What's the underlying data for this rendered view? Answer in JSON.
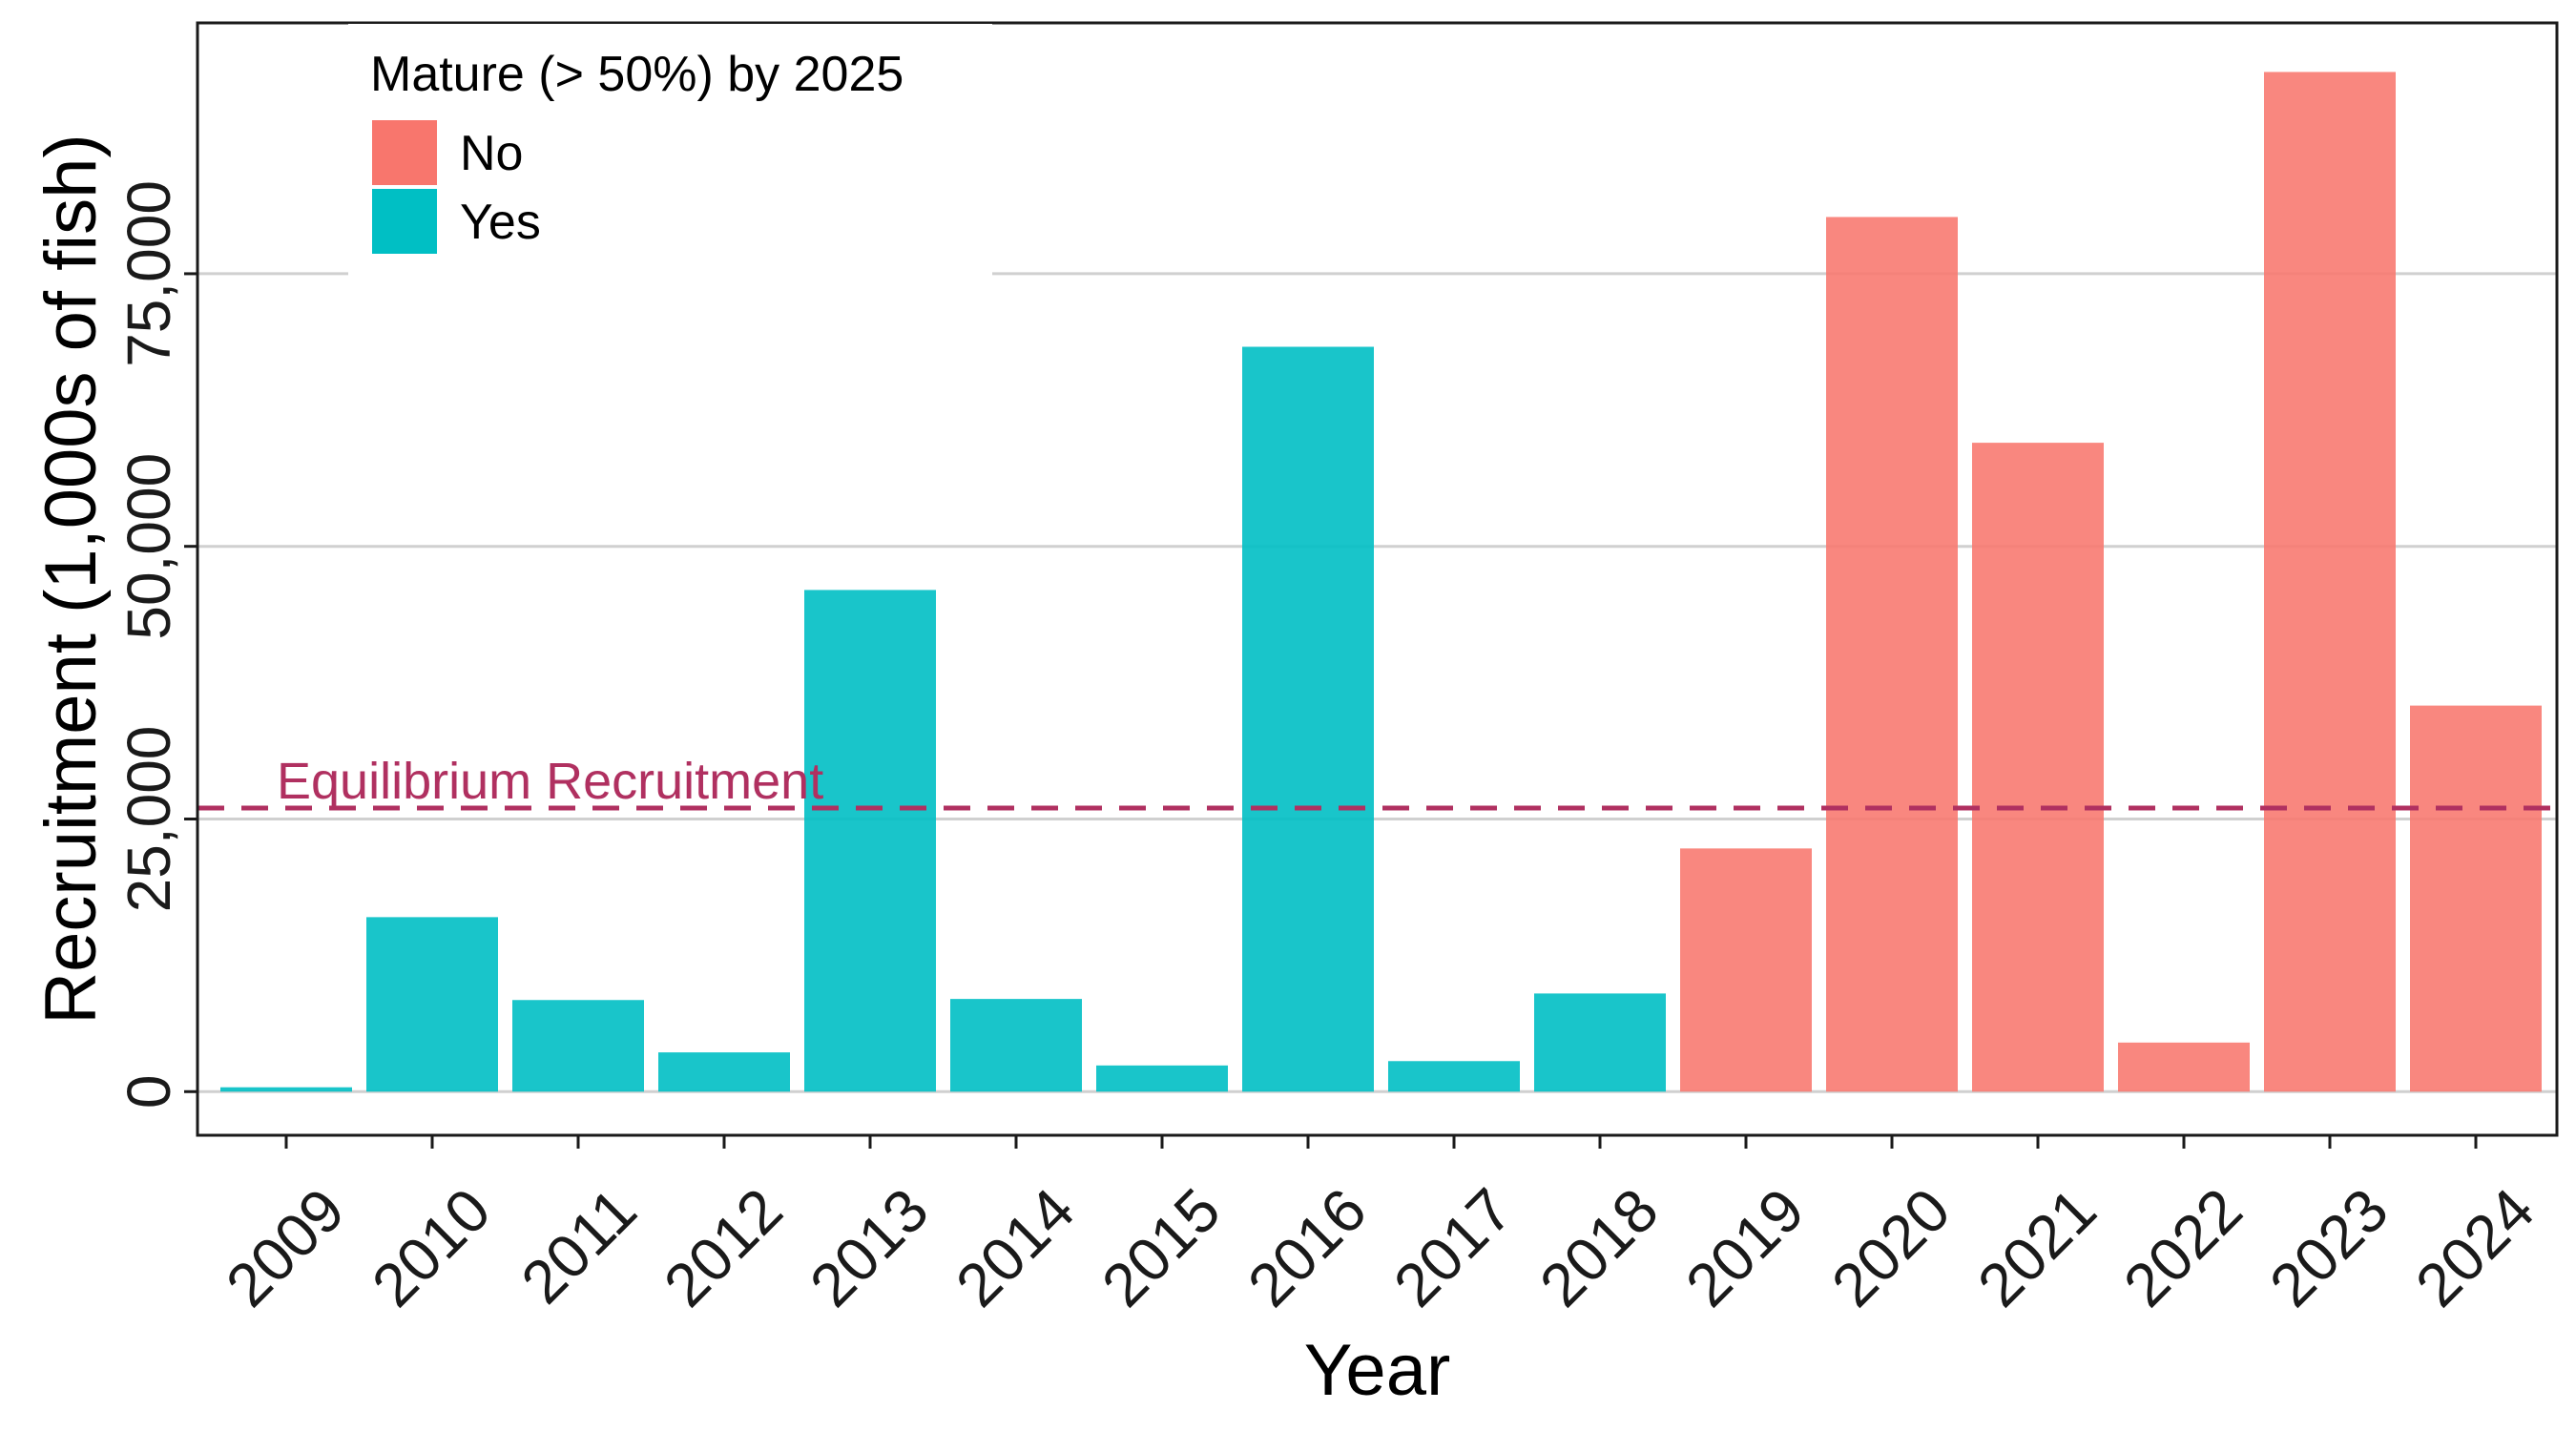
{
  "chart_data": {
    "type": "bar",
    "xlabel": "Year",
    "ylabel": "Recruitment (1,000s of fish)",
    "ylim": [
      -4000,
      98000
    ],
    "yticks": [
      0,
      25000,
      50000,
      75000
    ],
    "ytick_labels": [
      "0",
      "25,000",
      "50,000",
      "75,000"
    ],
    "grid": "horizontal",
    "legend": {
      "title": "Mature (> 50%) by 2025",
      "placement": "top-left",
      "items": [
        {
          "label": "No",
          "color": "#F8766D"
        },
        {
          "label": "Yes",
          "color": "#00BFC4"
        }
      ]
    },
    "categories": [
      "2009",
      "2010",
      "2011",
      "2012",
      "2013",
      "2014",
      "2015",
      "2016",
      "2017",
      "2018",
      "2019",
      "2020",
      "2021",
      "2022",
      "2023",
      "2024"
    ],
    "values": [
      400,
      16000,
      8400,
      3600,
      46000,
      8500,
      2400,
      68300,
      2800,
      9000,
      22300,
      80200,
      59500,
      4500,
      93500,
      35400
    ],
    "groups": [
      "Yes",
      "Yes",
      "Yes",
      "Yes",
      "Yes",
      "Yes",
      "Yes",
      "Yes",
      "Yes",
      "Yes",
      "No",
      "No",
      "No",
      "No",
      "No",
      "No"
    ],
    "reference_line": {
      "value": 26000,
      "label": "Equilibrium Recruitment",
      "color": "#B03060",
      "style": "dashed"
    }
  }
}
